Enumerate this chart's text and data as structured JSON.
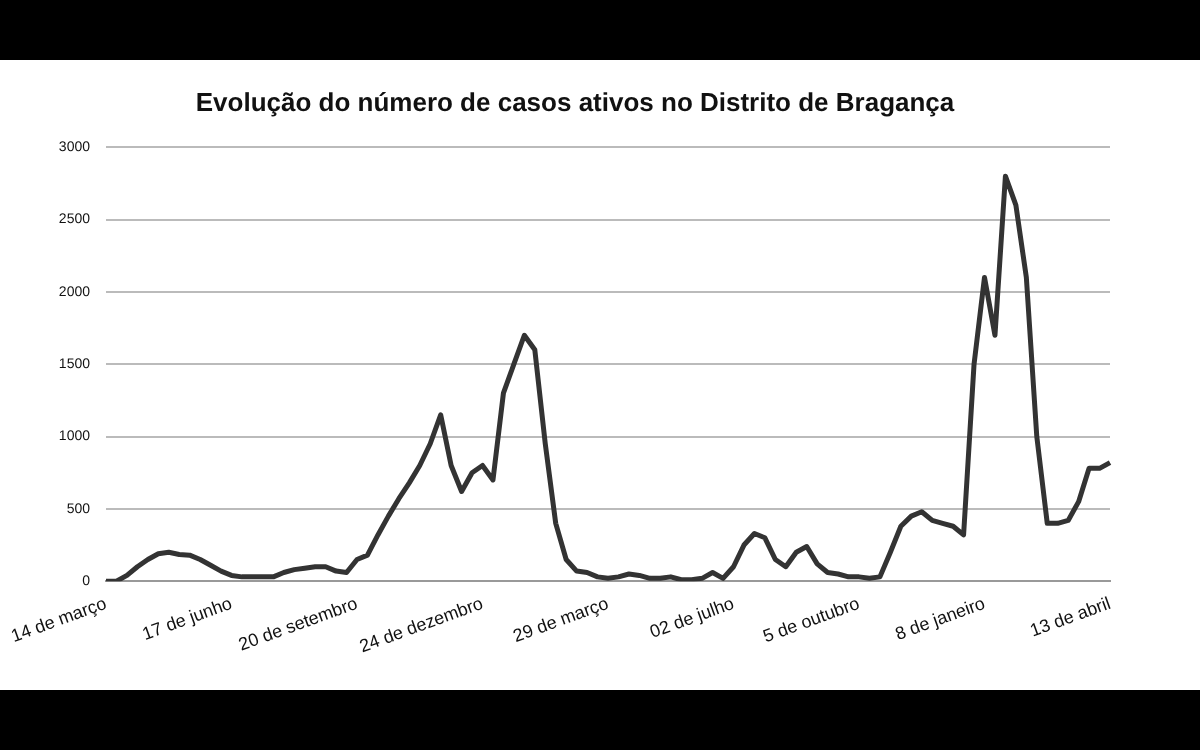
{
  "chart_data": {
    "type": "line",
    "title": "Evolução do número de casos ativos no Distrito de Bragança",
    "categories": [
      "14 de março",
      null,
      null,
      null,
      null,
      null,
      null,
      null,
      null,
      null,
      null,
      null,
      "17 de junho",
      null,
      null,
      null,
      null,
      null,
      null,
      null,
      null,
      null,
      null,
      null,
      "20 de setembro",
      null,
      null,
      null,
      null,
      null,
      null,
      null,
      null,
      null,
      null,
      null,
      "24 de dezembro",
      null,
      null,
      null,
      null,
      null,
      null,
      null,
      null,
      null,
      null,
      null,
      "29 de março",
      null,
      null,
      null,
      null,
      null,
      null,
      null,
      null,
      null,
      null,
      null,
      "02 de julho",
      null,
      null,
      null,
      null,
      null,
      null,
      null,
      null,
      null,
      null,
      null,
      "5 de outubro",
      null,
      null,
      null,
      null,
      null,
      null,
      null,
      null,
      null,
      null,
      null,
      "8 de janeiro",
      null,
      null,
      null,
      null,
      null,
      null,
      null,
      null,
      null,
      null,
      null,
      "13 de abril"
    ],
    "series": [
      {
        "color": "#333333",
        "values": [
          0,
          0,
          40,
          100,
          150,
          190,
          200,
          185,
          180,
          150,
          110,
          70,
          40,
          30,
          30,
          30,
          30,
          60,
          80,
          90,
          100,
          100,
          70,
          60,
          150,
          180,
          320,
          450,
          570,
          680,
          800,
          950,
          1150,
          800,
          620,
          750,
          800,
          700,
          1300,
          1500,
          1700,
          1600,
          950,
          400,
          150,
          70,
          60,
          30,
          20,
          30,
          50,
          40,
          20,
          20,
          30,
          10,
          10,
          20,
          60,
          20,
          100,
          250,
          330,
          300,
          150,
          100,
          200,
          240,
          120,
          60,
          50,
          30,
          30,
          20,
          30,
          200,
          380,
          450,
          480,
          420,
          400,
          380,
          320,
          1500,
          2100,
          1700,
          2800,
          2600,
          2100,
          1000,
          400,
          400,
          420,
          550,
          780,
          780,
          820
        ]
      }
    ],
    "ylim": [
      0,
      3000
    ],
    "yticks": [
      0,
      500,
      1000,
      1500,
      2000,
      2500,
      3000
    ],
    "grid": "y",
    "legend": false,
    "marker": "none",
    "line_style": "solid"
  }
}
